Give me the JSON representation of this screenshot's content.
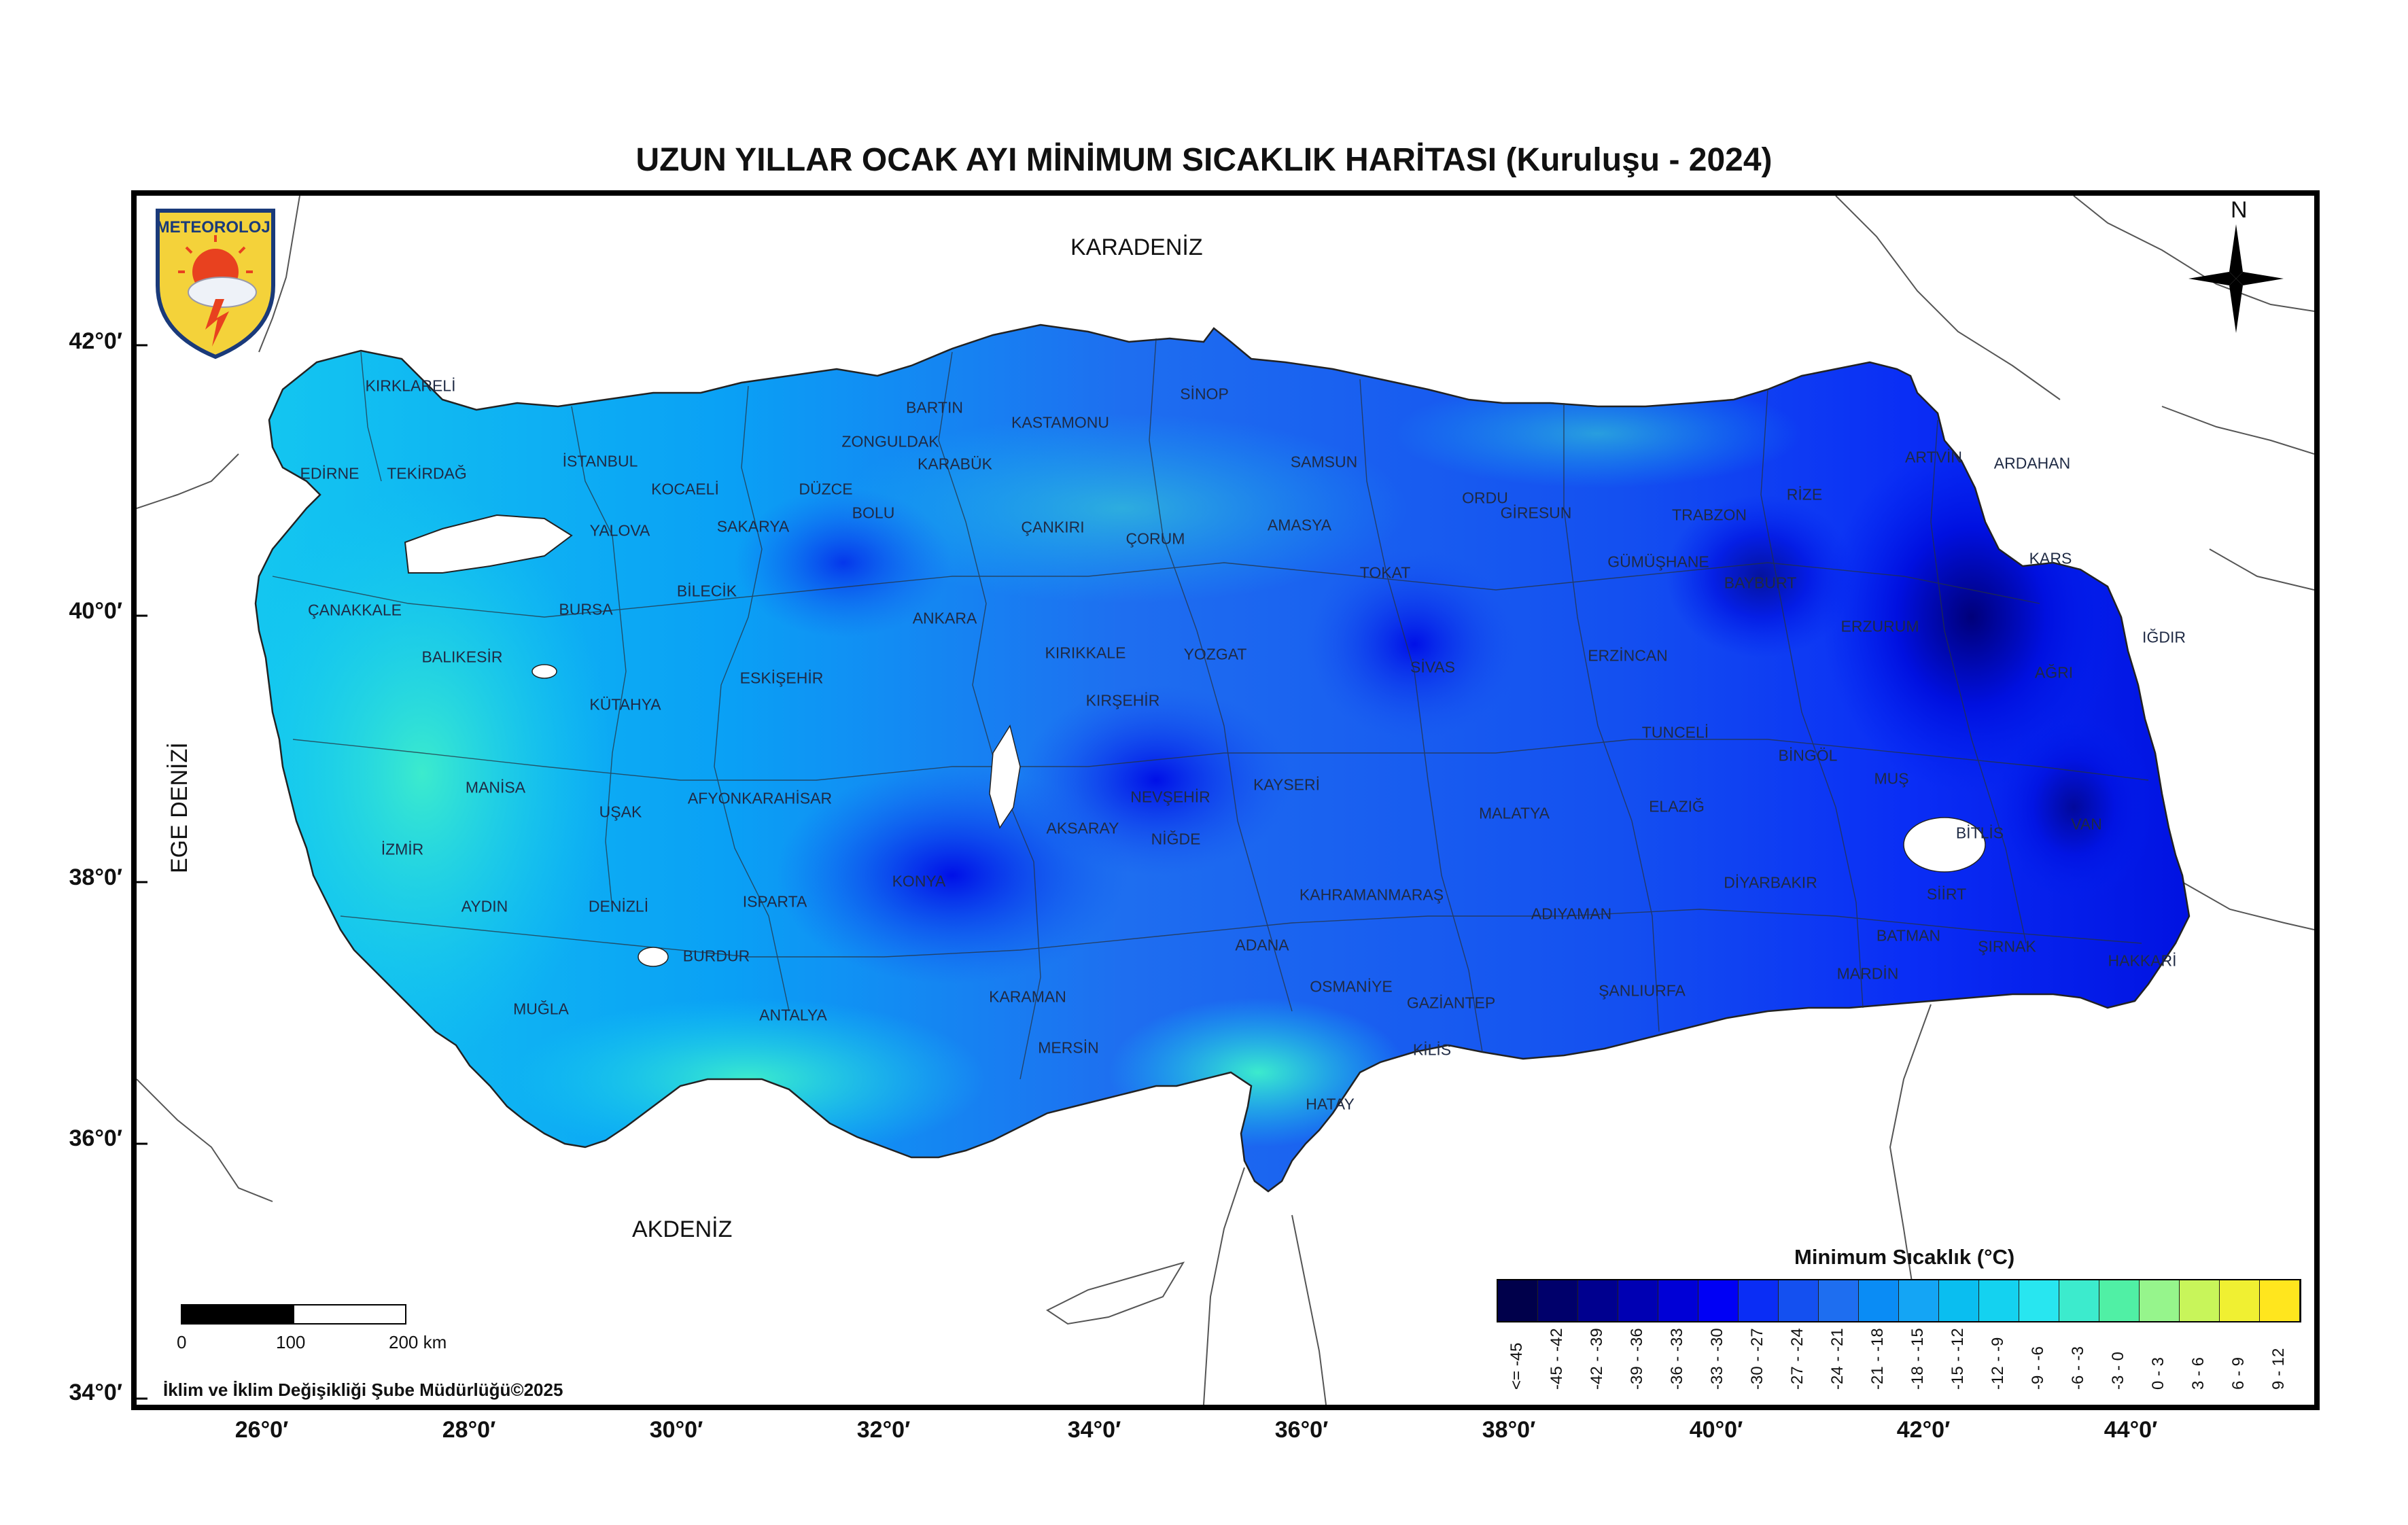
{
  "title": "UZUN YILLAR OCAK AYI MİNİMUM SICAKLIK HARİTASI (Kuruluşu - 2024)",
  "logo": {
    "text": "METEOROLOJİ",
    "icon": "meteoroloji-logo-icon"
  },
  "north_arrow": {
    "label": "N",
    "icon": "compass-rose-icon"
  },
  "seas": {
    "karadeniz": "KARADENİZ",
    "akdeniz": "AKDENİZ",
    "ege": "EGE DENİZİ"
  },
  "latitude_labels": [
    "42°0′",
    "40°0′",
    "38°0′",
    "36°0′",
    "34°0′"
  ],
  "longitude_labels": [
    "26°0′",
    "28°0′",
    "30°0′",
    "32°0′",
    "34°0′",
    "36°0′",
    "38°0′",
    "40°0′",
    "42°0′",
    "44°0′"
  ],
  "provinces": [
    "KIRKLARELİ",
    "EDİRNE",
    "TEKİRDAĞ",
    "İSTANBUL",
    "KOCAELİ",
    "YALOVA",
    "SAKARYA",
    "DÜZCE",
    "BOLU",
    "ZONGULDAK",
    "BARTIN",
    "KARABÜK",
    "KASTAMONU",
    "SİNOP",
    "SAMSUN",
    "ÇANKIRI",
    "ÇORUM",
    "AMASYA",
    "ORDU",
    "GİRESUN",
    "TRABZON",
    "RİZE",
    "ARTVİN",
    "ARDAHAN",
    "KARS",
    "IĞDIR",
    "AĞRI",
    "ERZURUM",
    "BAYBURT",
    "GÜMÜŞHANE",
    "TOKAT",
    "SİVAS",
    "ERZİNCAN",
    "TUNCELİ",
    "BİNGÖL",
    "MUŞ",
    "VAN",
    "BİTLİS",
    "HAKKARİ",
    "ŞIRNAK",
    "SİİRT",
    "BATMAN",
    "MARDİN",
    "DİYARBAKIR",
    "ELAZIĞ",
    "MALATYA",
    "ADIYAMAN",
    "ŞANLIURFA",
    "GAZİANTEP",
    "KİLİS",
    "HATAY",
    "OSMANİYE",
    "ADANA",
    "KAHRAMANMARAŞ",
    "KAYSERİ",
    "NİĞDE",
    "NEVŞEHİR",
    "AKSARAY",
    "KIRŞEHİR",
    "KIRIKKALE",
    "YOZGAT",
    "ANKARA",
    "KONYA",
    "KARAMAN",
    "MERSİN",
    "ANTALYA",
    "ISPARTA",
    "BURDUR",
    "AFYONKARAHİSAR",
    "UŞAK",
    "DENİZLİ",
    "MUĞLA",
    "AYDIN",
    "İZMİR",
    "MANİSA",
    "KÜTAHYA",
    "ESKİŞEHİR",
    "BİLECİK",
    "BURSA",
    "BALIKESİR",
    "ÇANAKKALE"
  ],
  "legend": {
    "title": "Minimum Sıcaklık (°C)",
    "classes": [
      {
        "label": "<= -45",
        "color": "#00004b"
      },
      {
        "label": "-45 - -42",
        "color": "#00006b"
      },
      {
        "label": "-42 - -39",
        "color": "#00008f"
      },
      {
        "label": "-39 - -36",
        "color": "#0000b3"
      },
      {
        "label": "-36 - -33",
        "color": "#0000d6"
      },
      {
        "label": "-33 - -30",
        "color": "#0000f5"
      },
      {
        "label": "-30 - -27",
        "color": "#0a2df5"
      },
      {
        "label": "-27 - -24",
        "color": "#1450f0"
      },
      {
        "label": "-24 - -21",
        "color": "#1e6ef0"
      },
      {
        "label": "-21 - -18",
        "color": "#0a8cf5"
      },
      {
        "label": "-18 - -15",
        "color": "#14a5f5"
      },
      {
        "label": "-15 - -12",
        "color": "#0abef0"
      },
      {
        "label": "-12 - -9",
        "color": "#14d2f0"
      },
      {
        "label": "-9 - -6",
        "color": "#28e6f0"
      },
      {
        "label": "-6 - -3",
        "color": "#3cebcd"
      },
      {
        "label": "-3 - 0",
        "color": "#50f0a5"
      },
      {
        "label": "0 - 3",
        "color": "#96f58c"
      },
      {
        "label": "3 - 6",
        "color": "#c8f55a"
      },
      {
        "label": "6 - 9",
        "color": "#f0f032"
      },
      {
        "label": "9 - 12",
        "color": "#ffe61e"
      }
    ]
  },
  "scale_bar": {
    "labels": [
      "0",
      "100",
      "200 km"
    ]
  },
  "credit": "İklim ve İklim Değişikliği Şube Müdürlüğü©2025"
}
